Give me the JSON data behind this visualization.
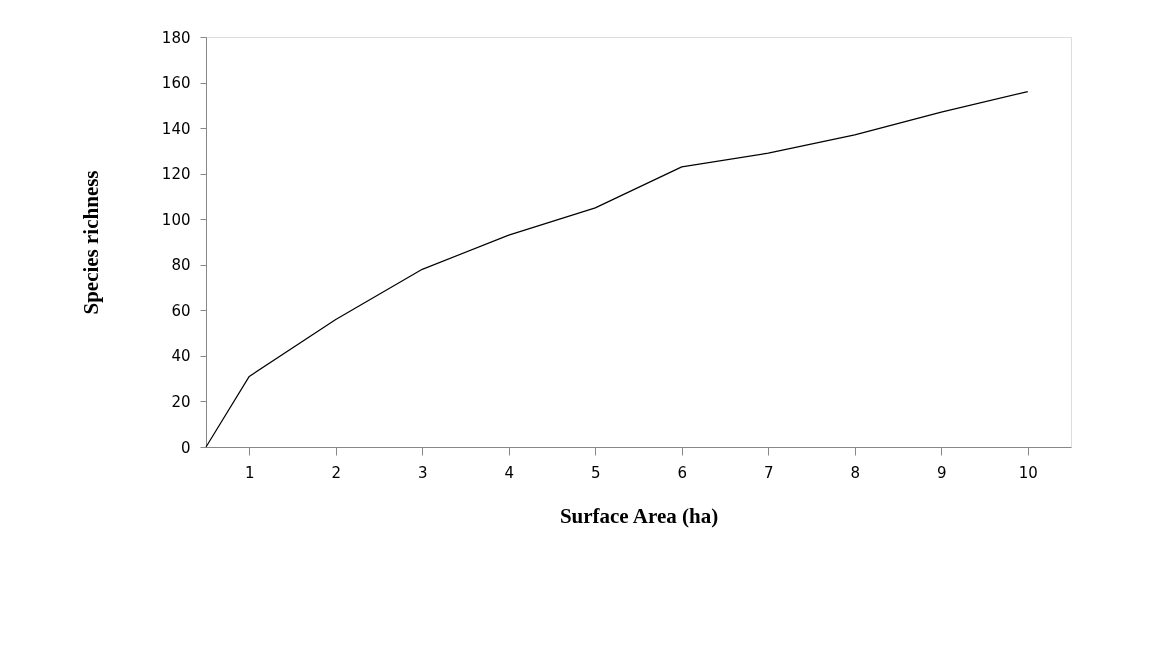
{
  "chart_data": {
    "type": "line",
    "xlabel": "Surface Area (ha)",
    "ylabel": "Species richness",
    "x": [
      0.5,
      1,
      2,
      3,
      4,
      5,
      6,
      7,
      8,
      9,
      10
    ],
    "series": [
      {
        "color": "#000000",
        "values": [
          0,
          31,
          56,
          78,
          93,
          105,
          123,
          129,
          137,
          147,
          156
        ]
      }
    ],
    "xlim": [
      0.5,
      10.5
    ],
    "xticks": [
      1,
      2,
      3,
      4,
      5,
      6,
      7,
      8,
      9,
      10
    ],
    "ylim": [
      0,
      180
    ],
    "yticks": [
      0,
      20,
      40,
      60,
      80,
      100,
      120,
      140,
      160,
      180
    ],
    "grid": false,
    "legend": false,
    "marker": "none",
    "line_style": "solid"
  }
}
